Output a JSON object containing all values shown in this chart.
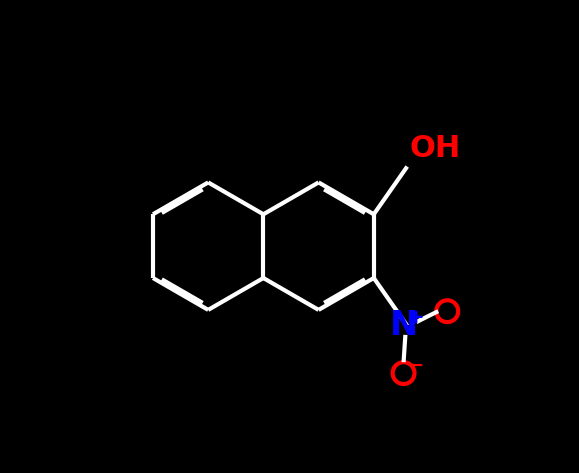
{
  "background_color": "#000000",
  "bond_color": "#ffffff",
  "bond_width": 3.0,
  "oh_color": "#ff0000",
  "n_color": "#0000ff",
  "o_color": "#ff0000",
  "figsize": [
    5.79,
    4.73
  ],
  "dpi": 100,
  "r_hex": 0.175,
  "rcx": 0.56,
  "rcy": 0.48,
  "oh_fontsize": 22,
  "n_fontsize": 24,
  "o_fontsize": 22,
  "sup_fontsize": 14
}
